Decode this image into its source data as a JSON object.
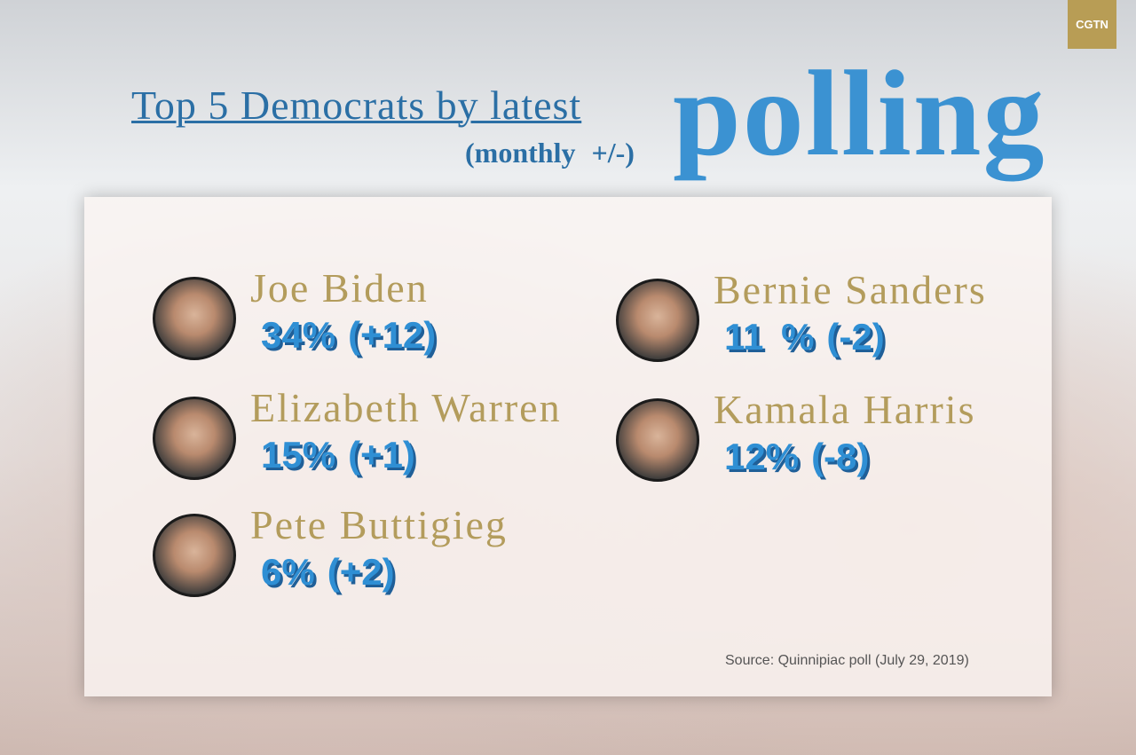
{
  "header": {
    "logo": "CGTN",
    "title": "Top 5 Democrats by latest",
    "title_emphasis": "polling",
    "subtitle": "(monthly +/-)"
  },
  "candidates": [
    {
      "name": "Joe Biden",
      "share": "34%",
      "change": "(+12)"
    },
    {
      "name": "Bernie Sanders",
      "share": "11 %",
      "change": "(-2)"
    },
    {
      "name": "Elizabeth Warren",
      "share": "15%",
      "change": "(+1)"
    },
    {
      "name": "Kamala Harris",
      "share": "12%",
      "change": "(-8)"
    },
    {
      "name": "Pete Buttigieg",
      "share": "6%",
      "change": "(+2)"
    }
  ],
  "source": "Source: Quinnipiac poll (July 29, 2019)"
}
